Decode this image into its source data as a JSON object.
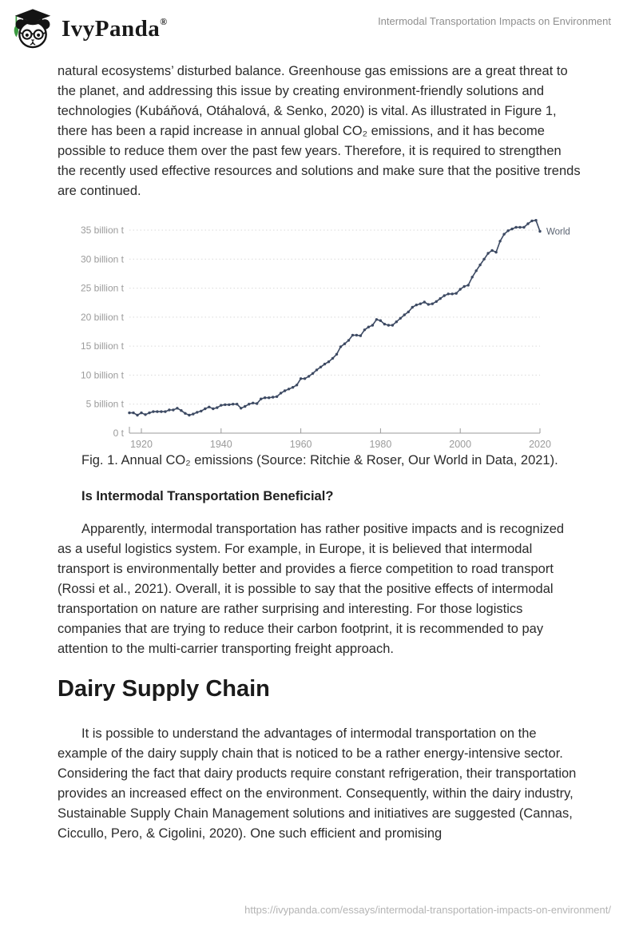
{
  "header": {
    "brand": "IvyPanda",
    "registered": "®",
    "doc_title": "Intermodal Transportation Impacts on Environment"
  },
  "paragraphs": {
    "p1": "natural ecosystems’ disturbed balance. Greenhouse gas emissions are a great threat to the planet, and addressing this issue by creating environment-friendly solutions and technologies (Kubáňová, Otáhalová, & Senko, 2020) is vital. As illustrated in Figure 1, there has been a rapid increase in annual global CO₂ emissions, and it has become possible to reduce them over the past few years. Therefore, it is required to strengthen the recently used effective resources and solutions and make sure that the positive trends are continued.",
    "caption": "Fig. 1. Annual CO₂ emissions (Source: Ritchie & Roser, Our World in Data, 2021).",
    "h3": "Is Intermodal Transportation Beneficial?",
    "p2": "Apparently, intermodal transportation has rather positive impacts and is recognized as a useful logistics system. For example, in Europe, it is believed that intermodal transport is environmentally better and provides a fierce competition to road transport (Rossi et al., 2021). Overall, it is possible to say that the positive effects of intermodal transportation on nature are rather surprising and interesting. For those logistics companies that are trying to reduce their carbon footprint, it is recommended to pay attention to the multi-carrier transporting freight approach.",
    "h1": "Dairy Supply Chain",
    "p3": "It is possible to understand the advantages of intermodal transportation on the example of the dairy supply chain that is noticed to be a rather energy-intensive sector. Considering the fact that dairy products require constant refrigeration, their transportation provides an increased effect on the environment. Consequently, within the dairy industry, Sustainable Supply Chain Management solutions and initiatives are suggested (Cannas, Ciccullo, Pero, & Cigolini, 2020). One such efficient and promising"
  },
  "footer": {
    "url": "https://ivypanda.com/essays/intermodal-transportation-impacts-on-environment/"
  },
  "chart_data": {
    "type": "line",
    "title": "",
    "xlabel": "",
    "ylabel": "",
    "x": [
      1917,
      1918,
      1919,
      1920,
      1921,
      1922,
      1923,
      1924,
      1925,
      1926,
      1927,
      1928,
      1929,
      1930,
      1931,
      1932,
      1933,
      1934,
      1935,
      1936,
      1937,
      1938,
      1939,
      1940,
      1941,
      1942,
      1943,
      1944,
      1945,
      1946,
      1947,
      1948,
      1949,
      1950,
      1951,
      1952,
      1953,
      1954,
      1955,
      1956,
      1957,
      1958,
      1959,
      1960,
      1961,
      1962,
      1963,
      1964,
      1965,
      1966,
      1967,
      1968,
      1969,
      1970,
      1971,
      1972,
      1973,
      1974,
      1975,
      1976,
      1977,
      1978,
      1979,
      1980,
      1981,
      1982,
      1983,
      1984,
      1985,
      1986,
      1987,
      1988,
      1989,
      1990,
      1991,
      1992,
      1993,
      1994,
      1995,
      1996,
      1997,
      1998,
      1999,
      2000,
      2001,
      2002,
      2003,
      2004,
      2005,
      2006,
      2007,
      2008,
      2009,
      2010,
      2011,
      2012,
      2013,
      2014,
      2015,
      2016,
      2017,
      2018,
      2019,
      2020
    ],
    "series": [
      {
        "name": "World",
        "values": [
          3.5,
          3.5,
          3.1,
          3.5,
          3.2,
          3.5,
          3.7,
          3.7,
          3.7,
          3.7,
          4.0,
          4.0,
          4.3,
          3.9,
          3.4,
          3.1,
          3.3,
          3.6,
          3.8,
          4.2,
          4.5,
          4.2,
          4.4,
          4.8,
          4.9,
          4.9,
          5.0,
          5.0,
          4.3,
          4.6,
          5.0,
          5.2,
          5.1,
          5.9,
          6.1,
          6.1,
          6.2,
          6.3,
          6.9,
          7.3,
          7.6,
          7.9,
          8.3,
          9.4,
          9.4,
          9.8,
          10.3,
          10.9,
          11.4,
          11.9,
          12.3,
          12.9,
          13.6,
          14.9,
          15.4,
          16.0,
          16.9,
          16.9,
          16.8,
          17.8,
          18.3,
          18.6,
          19.6,
          19.4,
          18.8,
          18.6,
          18.6,
          19.2,
          19.8,
          20.4,
          20.9,
          21.7,
          22.1,
          22.3,
          22.6,
          22.2,
          22.3,
          22.7,
          23.2,
          23.7,
          24.0,
          24.0,
          24.1,
          24.8,
          25.3,
          25.5,
          26.9,
          28.0,
          29.0,
          30.0,
          31.0,
          31.5,
          31.2,
          33.1,
          34.3,
          34.9,
          35.2,
          35.5,
          35.5,
          35.5,
          36.1,
          36.6,
          36.7,
          34.8
        ]
      }
    ],
    "xticks": [
      1920,
      1940,
      1960,
      1980,
      2000,
      2020
    ],
    "yticks": [
      0,
      5,
      10,
      15,
      20,
      25,
      30,
      35
    ],
    "ytick_suffix": " billion t",
    "ytick_zero_label": "0 t",
    "ylim": [
      0,
      37
    ],
    "grid": "dotted",
    "legend_position": "end-of-line",
    "line_color": "#3d4a63",
    "axis_color": "#9a9a9a",
    "grid_color": "#d9d9d9",
    "tick_label_color": "#9b9b9b",
    "series_label_color": "#5b6472"
  }
}
